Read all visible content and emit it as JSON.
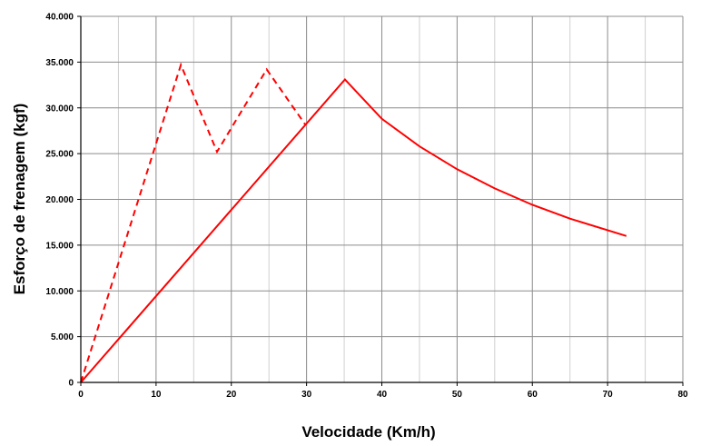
{
  "chart_data": {
    "type": "line",
    "xlabel": "Velocidade (Km/h)",
    "ylabel": "Esforço de frenagem (kgf)",
    "xlim": [
      0,
      80
    ],
    "ylim": [
      0,
      40000
    ],
    "x_ticks": [
      0,
      10,
      20,
      30,
      40,
      50,
      60,
      70,
      80
    ],
    "x_tick_labels": [
      "0",
      "10",
      "20",
      "30",
      "40",
      "50",
      "60",
      "70",
      "80"
    ],
    "y_ticks": [
      0,
      5000,
      10000,
      15000,
      20000,
      25000,
      30000,
      35000,
      40000
    ],
    "y_tick_labels": [
      "0",
      "5.000",
      "10.000",
      "15.000",
      "20.000",
      "25.000",
      "30.000",
      "35.000",
      "40.000"
    ],
    "x_minor_step": 5,
    "grid": true,
    "line_color": "#ff0000",
    "series": [
      {
        "style": "dashed",
        "points": [
          [
            0,
            0
          ],
          [
            13.3,
            34700
          ],
          [
            18.1,
            25200
          ],
          [
            24.7,
            34200
          ],
          [
            29.8,
            28200
          ]
        ]
      },
      {
        "style": "solid",
        "points": [
          [
            0,
            0
          ],
          [
            35.1,
            33100
          ],
          [
            40,
            28800
          ],
          [
            45,
            25800
          ],
          [
            50,
            23300
          ],
          [
            55,
            21200
          ],
          [
            60,
            19400
          ],
          [
            65,
            17900
          ],
          [
            72.5,
            16000
          ]
        ]
      }
    ]
  }
}
